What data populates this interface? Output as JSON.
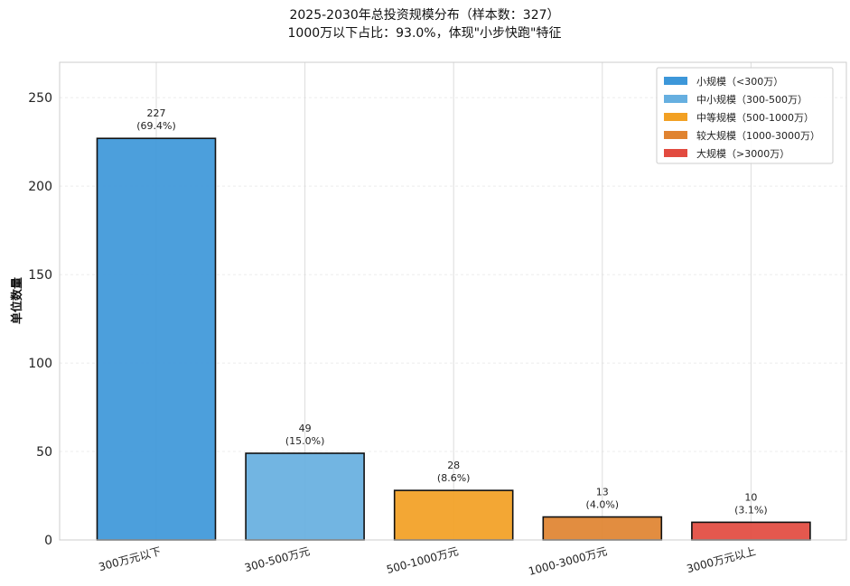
{
  "chart_data": {
    "type": "bar",
    "title": "2025-2030年总投资规模分布（样本数：327）",
    "subtitle": "1000万以下占比：93.0%，体现\"小步快跑\"特征",
    "xlabel": "",
    "ylabel": "单位数量",
    "ylim": [
      0,
      270
    ],
    "yticks": [
      0,
      50,
      100,
      150,
      200,
      250
    ],
    "grid": true,
    "legend_position": "top-right",
    "categories": [
      "300万元以下",
      "300-500万元",
      "500-1000万元",
      "1000-3000万元",
      "3000万元以上"
    ],
    "values": [
      227,
      49,
      28,
      13,
      10
    ],
    "percent_labels": [
      "(69.4%)",
      "(15.0%)",
      "(8.6%)",
      "(4.0%)",
      "(3.1%)"
    ],
    "colors": [
      "#3d97d9",
      "#66afe0",
      "#f2a023",
      "#e08330",
      "#e24a3f"
    ],
    "legend": [
      {
        "label": "小规模（<300万）",
        "color": "#3d97d9"
      },
      {
        "label": "中小规模（300-500万）",
        "color": "#66afe0"
      },
      {
        "label": "中等规模（500-1000万）",
        "color": "#f2a023"
      },
      {
        "label": "较大规模（1000-3000万）",
        "color": "#e08330"
      },
      {
        "label": "大规模（>3000万）",
        "color": "#e24a3f"
      }
    ]
  }
}
